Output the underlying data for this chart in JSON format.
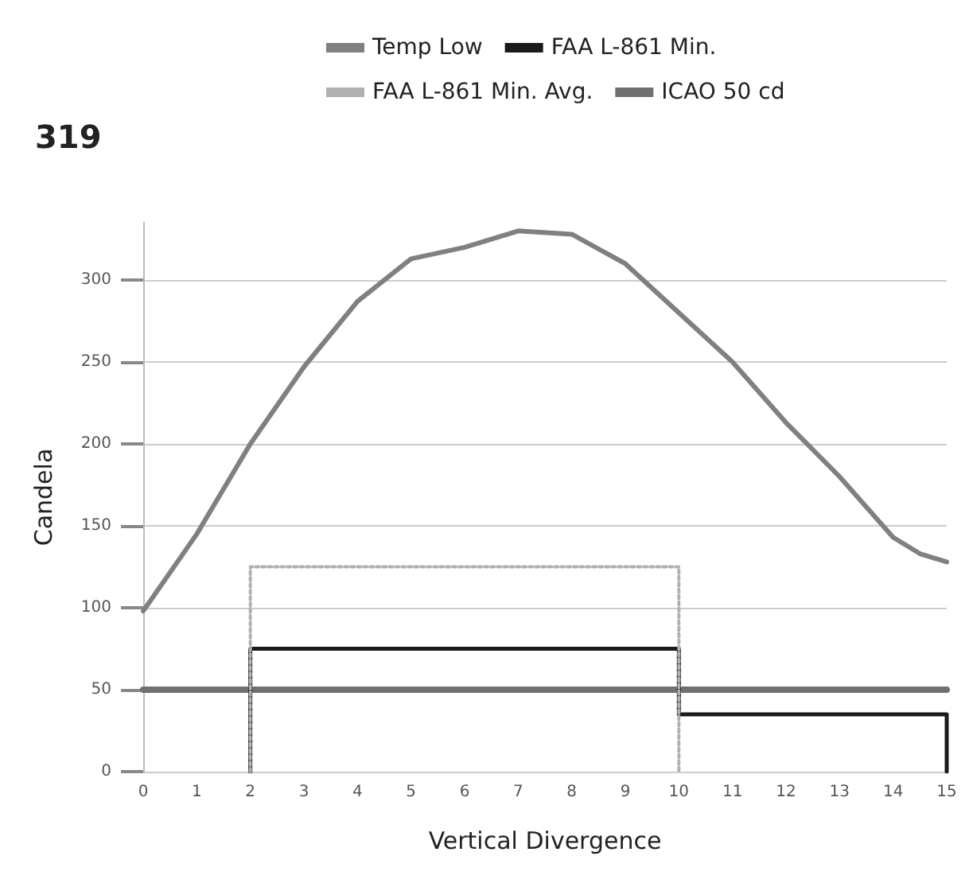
{
  "chart_data": {
    "type": "line",
    "xlabel": "Vertical Divergence",
    "ylabel": "Candela",
    "annotations": [
      "319"
    ],
    "xlim": [
      0,
      15
    ],
    "xticks": [
      0,
      1,
      2,
      3,
      4,
      5,
      6,
      7,
      8,
      9,
      10,
      11,
      12,
      13,
      14,
      15
    ],
    "ylim": [
      0,
      335
    ],
    "yticks": [
      0,
      50,
      100,
      150,
      200,
      250,
      300
    ],
    "grid": "y",
    "legend": "top",
    "marker": "none",
    "series": [
      {
        "name": "Temp Low",
        "color": "#808080",
        "line_style": "solid",
        "x": [
          0,
          1,
          2,
          3,
          4,
          5,
          6,
          7,
          8,
          9,
          10,
          11,
          12,
          13,
          14,
          14.5,
          15
        ],
        "values": [
          98,
          145,
          200,
          247,
          287,
          313,
          320,
          330,
          328,
          310,
          280,
          250,
          213,
          180,
          143,
          133,
          128
        ]
      },
      {
        "name": "FAA L-861 Min.",
        "color": "#1a1a1a",
        "line_style": "solid",
        "x": [
          2,
          2,
          10,
          10,
          15,
          15
        ],
        "values": [
          0,
          75,
          75,
          35,
          35,
          0
        ]
      },
      {
        "name": "FAA L-861 Min. Avg.",
        "color": "#b0b0b0",
        "line_style": "dotted",
        "x": [
          2,
          2,
          10,
          10
        ],
        "values": [
          0,
          125,
          125,
          0
        ]
      },
      {
        "name": "ICAO 50 cd",
        "color": "#707070",
        "line_style": "solid",
        "x": [
          0,
          15
        ],
        "values": [
          50,
          50
        ]
      }
    ]
  }
}
